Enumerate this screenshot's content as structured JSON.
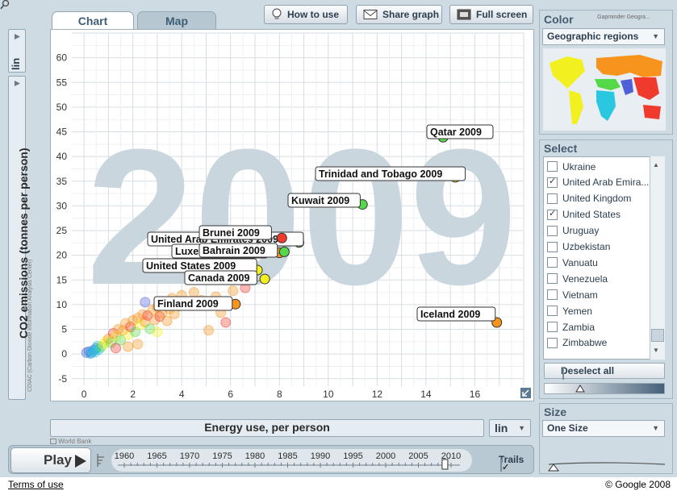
{
  "tabs": [
    {
      "label": "Chart"
    },
    {
      "label": "Map"
    }
  ],
  "toolbar": {
    "how_to_use": "How to use",
    "share_graph": "Share graph",
    "full_screen": "Full screen"
  },
  "y_scale": "lin",
  "x_scale": "lin",
  "y_source": "CDIAC (Carbon Dioxide Information Analysis Center)",
  "x_source": "World Bank",
  "year_watermark": "2009",
  "play": {
    "label": "Play",
    "years": [
      "1960",
      "1965",
      "1970",
      "1975",
      "1980",
      "1985",
      "1990",
      "1995",
      "2000",
      "2005",
      "2010"
    ],
    "current_year": 2009,
    "trails_label": "Trails",
    "trails_checked": true
  },
  "color_panel": {
    "title": "Color",
    "brand": "Gapminder Geogra...",
    "selected": "Geographic regions"
  },
  "select_panel": {
    "title": "Select",
    "items": [
      {
        "label": "Ukraine",
        "checked": false
      },
      {
        "label": "United Arab Emira...",
        "checked": true
      },
      {
        "label": "United Kingdom",
        "checked": false
      },
      {
        "label": "United States",
        "checked": true
      },
      {
        "label": "Uruguay",
        "checked": false
      },
      {
        "label": "Uzbekistan",
        "checked": false
      },
      {
        "label": "Vanuatu",
        "checked": false
      },
      {
        "label": "Venezuela",
        "checked": false
      },
      {
        "label": "Vietnam",
        "checked": false
      },
      {
        "label": "Yemen",
        "checked": false
      },
      {
        "label": "Zambia",
        "checked": false
      },
      {
        "label": "Zimbabwe",
        "checked": false
      }
    ],
    "deselect_label": "Deselect all"
  },
  "size_panel": {
    "title": "Size",
    "selected": "One Size"
  },
  "footer": {
    "terms": "Terms of use",
    "copyright": "© Google 2008"
  },
  "colors": {
    "south_asia": "#4f5fd6",
    "east_asia_pacific": "#f03a2e",
    "europe_central_asia": "#f7941d",
    "middle_east_north_africa": "#55d84a",
    "americas": "#f2f01e",
    "sub_saharan_africa": "#29c7e0"
  },
  "chart_data": {
    "type": "scatter",
    "xlabel": "Energy use, per person",
    "ylabel": "CO2 emissions (tonnes per person)",
    "xlim": [
      -0.5,
      18
    ],
    "ylim": [
      -6.5,
      65
    ],
    "x_ticks": [
      0,
      2,
      4,
      6,
      8,
      10,
      12,
      14,
      16
    ],
    "y_ticks": [
      -5,
      0,
      5,
      10,
      15,
      20,
      25,
      30,
      35,
      40,
      45,
      50,
      55,
      60
    ],
    "grid": true,
    "labeled_points": [
      {
        "label": "Qatar 2009",
        "x": 14.7,
        "y": 43.9,
        "color": "#55d84a"
      },
      {
        "label": "Trinidad and Tobago 2009",
        "x": 15.2,
        "y": 35.8,
        "color": "#f2f01e"
      },
      {
        "label": "Kuwait 2009",
        "x": 11.4,
        "y": 30.3,
        "color": "#55d84a"
      },
      {
        "label": "United Arab Emirates 2009",
        "x": 8.8,
        "y": 22.6,
        "color": "#55d84a"
      },
      {
        "label": "Brunei 2009",
        "x": 8.1,
        "y": 23.5,
        "color": "#f03a2e"
      },
      {
        "label": "Luxembourg 2009",
        "x": 8.0,
        "y": 20.5,
        "color": "#f7941d"
      },
      {
        "label": "Bahrain 2009",
        "x": 8.2,
        "y": 20.7,
        "color": "#55d84a"
      },
      {
        "label": "United States 2009",
        "x": 7.1,
        "y": 17.0,
        "color": "#f2f01e"
      },
      {
        "label": "Canada 2009",
        "x": 7.4,
        "y": 15.2,
        "color": "#f2f01e"
      },
      {
        "label": "Finland 2009",
        "x": 6.2,
        "y": 10.1,
        "color": "#f7941d"
      },
      {
        "label": "Iceland 2009",
        "x": 16.9,
        "y": 6.4,
        "color": "#f7941d"
      }
    ],
    "background_points": [
      {
        "x": 0.1,
        "y": 0.3,
        "c": "#4f5fd6"
      },
      {
        "x": 0.2,
        "y": 0.5,
        "c": "#4f5fd6"
      },
      {
        "x": 0.3,
        "y": 0.2,
        "c": "#4f5fd6"
      },
      {
        "x": 0.4,
        "y": 0.8,
        "c": "#4f5fd6"
      },
      {
        "x": 0.5,
        "y": 1.2,
        "c": "#4f5fd6"
      },
      {
        "x": 0.35,
        "y": 0.6,
        "c": "#29c7e0"
      },
      {
        "x": 0.25,
        "y": 0.1,
        "c": "#29c7e0"
      },
      {
        "x": 0.45,
        "y": 0.4,
        "c": "#29c7e0"
      },
      {
        "x": 0.6,
        "y": 0.9,
        "c": "#29c7e0"
      },
      {
        "x": 0.55,
        "y": 1.6,
        "c": "#29c7e0"
      },
      {
        "x": 0.7,
        "y": 1.4,
        "c": "#55d84a"
      },
      {
        "x": 0.8,
        "y": 2.0,
        "c": "#f2f01e"
      },
      {
        "x": 0.9,
        "y": 2.6,
        "c": "#f2f01e"
      },
      {
        "x": 1.0,
        "y": 3.1,
        "c": "#f7941d"
      },
      {
        "x": 1.1,
        "y": 2.3,
        "c": "#55d84a"
      },
      {
        "x": 1.2,
        "y": 4.2,
        "c": "#f03a2e"
      },
      {
        "x": 1.3,
        "y": 3.6,
        "c": "#f2f01e"
      },
      {
        "x": 1.4,
        "y": 5.0,
        "c": "#f7941d"
      },
      {
        "x": 1.5,
        "y": 2.8,
        "c": "#55d84a"
      },
      {
        "x": 1.6,
        "y": 4.8,
        "c": "#f7941d"
      },
      {
        "x": 1.7,
        "y": 6.2,
        "c": "#f7941d"
      },
      {
        "x": 1.8,
        "y": 3.9,
        "c": "#f2f01e"
      },
      {
        "x": 1.9,
        "y": 5.5,
        "c": "#f03a2e"
      },
      {
        "x": 2.0,
        "y": 6.8,
        "c": "#f7941d"
      },
      {
        "x": 2.1,
        "y": 4.5,
        "c": "#55d84a"
      },
      {
        "x": 2.2,
        "y": 7.3,
        "c": "#f7941d"
      },
      {
        "x": 2.3,
        "y": 5.9,
        "c": "#f2f01e"
      },
      {
        "x": 2.4,
        "y": 8.0,
        "c": "#f7941d"
      },
      {
        "x": 2.5,
        "y": 6.5,
        "c": "#f7941d"
      },
      {
        "x": 2.6,
        "y": 7.8,
        "c": "#f03a2e"
      },
      {
        "x": 2.7,
        "y": 5.1,
        "c": "#55d84a"
      },
      {
        "x": 2.8,
        "y": 8.9,
        "c": "#f7941d"
      },
      {
        "x": 2.9,
        "y": 6.9,
        "c": "#f7941d"
      },
      {
        "x": 3.0,
        "y": 9.5,
        "c": "#f7941d"
      },
      {
        "x": 3.1,
        "y": 7.6,
        "c": "#f03a2e"
      },
      {
        "x": 3.2,
        "y": 8.3,
        "c": "#f7941d"
      },
      {
        "x": 3.3,
        "y": 10.4,
        "c": "#f7941d"
      },
      {
        "x": 3.4,
        "y": 6.7,
        "c": "#f7941d"
      },
      {
        "x": 3.5,
        "y": 9.1,
        "c": "#f7941d"
      },
      {
        "x": 3.6,
        "y": 11.3,
        "c": "#f7941d"
      },
      {
        "x": 3.7,
        "y": 8.1,
        "c": "#f7941d"
      },
      {
        "x": 3.8,
        "y": 10.2,
        "c": "#f03a2e"
      },
      {
        "x": 3.9,
        "y": 9.7,
        "c": "#55d84a"
      },
      {
        "x": 4.0,
        "y": 11.9,
        "c": "#f7941d"
      },
      {
        "x": 4.2,
        "y": 10.6,
        "c": "#f7941d"
      },
      {
        "x": 4.5,
        "y": 12.5,
        "c": "#f7941d"
      },
      {
        "x": 4.8,
        "y": 10.9,
        "c": "#f7941d"
      },
      {
        "x": 5.1,
        "y": 4.8,
        "c": "#f7941d"
      },
      {
        "x": 5.4,
        "y": 11.6,
        "c": "#f7941d"
      },
      {
        "x": 5.6,
        "y": 8.4,
        "c": "#f7941d"
      },
      {
        "x": 5.8,
        "y": 6.4,
        "c": "#f03a2e"
      },
      {
        "x": 6.1,
        "y": 12.8,
        "c": "#f7941d"
      },
      {
        "x": 5.5,
        "y": 15.2,
        "c": "#55d84a"
      },
      {
        "x": 6.0,
        "y": 16.0,
        "c": "#f7941d"
      },
      {
        "x": 6.6,
        "y": 13.4,
        "c": "#f03a2e"
      },
      {
        "x": 2.5,
        "y": 10.5,
        "c": "#4f5fd6"
      },
      {
        "x": 3.0,
        "y": 4.5,
        "c": "#f2f01e"
      },
      {
        "x": 1.8,
        "y": 1.5,
        "c": "#f7941d"
      },
      {
        "x": 2.2,
        "y": 2.0,
        "c": "#f7941d"
      },
      {
        "x": 1.3,
        "y": 1.2,
        "c": "#f03a2e"
      }
    ]
  }
}
